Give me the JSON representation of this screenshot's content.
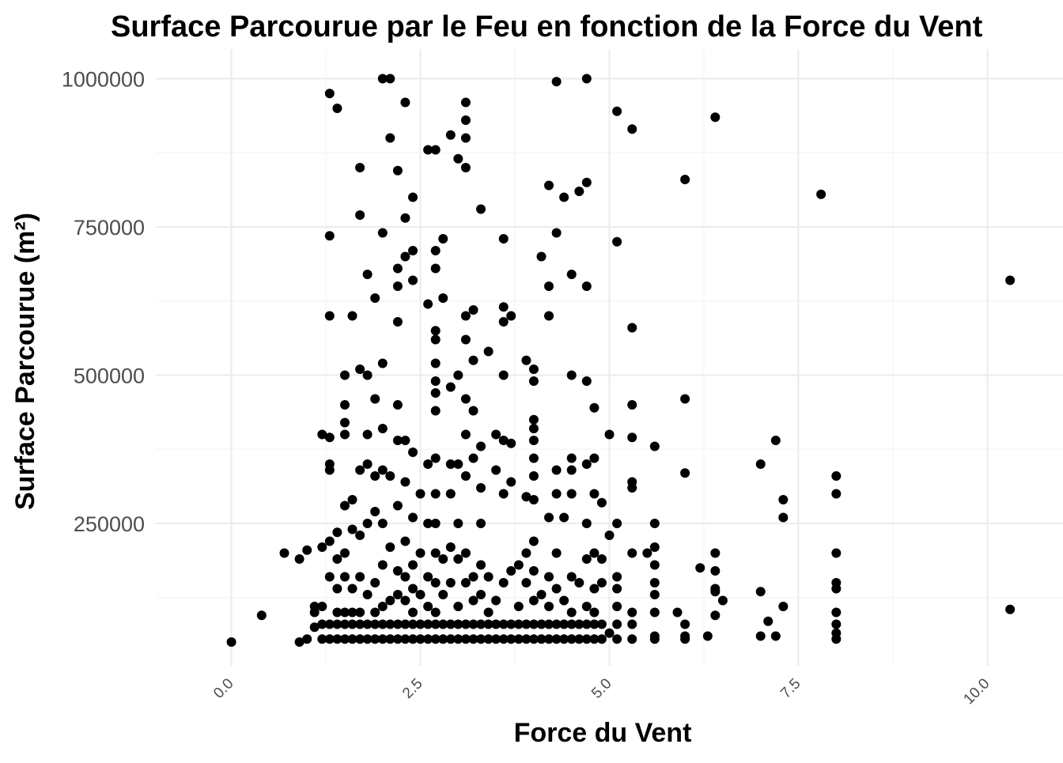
{
  "chart_data": {
    "type": "scatter",
    "title": "Surface Parcourue par le Feu en fonction de la Force du Vent",
    "xlabel": "Force du Vent",
    "ylabel": "Surface Parcourue (m²)",
    "xlim": [
      -1.0,
      11.0
    ],
    "ylim": [
      10000,
      1050000
    ],
    "x_ticks": [
      0.0,
      2.5,
      5.0,
      7.5,
      10.0
    ],
    "x_tick_labels": [
      "0.0",
      "2.5",
      "5.0",
      "7.5",
      "10.0"
    ],
    "y_ticks": [
      250000,
      500000,
      750000,
      1000000
    ],
    "y_tick_labels": [
      "250000",
      "500000",
      "750000",
      "1000000"
    ],
    "grid": true,
    "legend": "none",
    "point_color": "#000000",
    "points": [
      [
        0.0,
        50000
      ],
      [
        0.4,
        95000
      ],
      [
        0.7,
        200000
      ],
      [
        0.9,
        50000
      ],
      [
        0.9,
        190000
      ],
      [
        1.0,
        55000
      ],
      [
        1.0,
        205000
      ],
      [
        1.1,
        75000
      ],
      [
        1.1,
        100000
      ],
      [
        1.1,
        110000
      ],
      [
        1.2,
        55000
      ],
      [
        1.2,
        80000
      ],
      [
        1.2,
        110000
      ],
      [
        1.2,
        210000
      ],
      [
        1.2,
        400000
      ],
      [
        1.3,
        55000
      ],
      [
        1.3,
        80000
      ],
      [
        1.3,
        160000
      ],
      [
        1.3,
        220000
      ],
      [
        1.3,
        340000
      ],
      [
        1.3,
        350000
      ],
      [
        1.3,
        395000
      ],
      [
        1.3,
        600000
      ],
      [
        1.3,
        735000
      ],
      [
        1.3,
        975000
      ],
      [
        1.4,
        55000
      ],
      [
        1.4,
        80000
      ],
      [
        1.4,
        100000
      ],
      [
        1.4,
        140000
      ],
      [
        1.4,
        190000
      ],
      [
        1.4,
        235000
      ],
      [
        1.4,
        950000
      ],
      [
        1.5,
        55000
      ],
      [
        1.5,
        80000
      ],
      [
        1.5,
        100000
      ],
      [
        1.5,
        160000
      ],
      [
        1.5,
        200000
      ],
      [
        1.5,
        280000
      ],
      [
        1.5,
        400000
      ],
      [
        1.5,
        420000
      ],
      [
        1.5,
        450000
      ],
      [
        1.5,
        500000
      ],
      [
        1.6,
        55000
      ],
      [
        1.6,
        80000
      ],
      [
        1.6,
        100000
      ],
      [
        1.6,
        140000
      ],
      [
        1.6,
        240000
      ],
      [
        1.6,
        290000
      ],
      [
        1.6,
        600000
      ],
      [
        1.7,
        55000
      ],
      [
        1.7,
        80000
      ],
      [
        1.7,
        100000
      ],
      [
        1.7,
        160000
      ],
      [
        1.7,
        230000
      ],
      [
        1.7,
        340000
      ],
      [
        1.7,
        510000
      ],
      [
        1.7,
        770000
      ],
      [
        1.7,
        850000
      ],
      [
        1.8,
        55000
      ],
      [
        1.8,
        80000
      ],
      [
        1.8,
        130000
      ],
      [
        1.8,
        250000
      ],
      [
        1.8,
        350000
      ],
      [
        1.8,
        400000
      ],
      [
        1.8,
        500000
      ],
      [
        1.8,
        670000
      ],
      [
        1.9,
        55000
      ],
      [
        1.9,
        80000
      ],
      [
        1.9,
        100000
      ],
      [
        1.9,
        150000
      ],
      [
        1.9,
        270000
      ],
      [
        1.9,
        330000
      ],
      [
        1.9,
        460000
      ],
      [
        1.9,
        630000
      ],
      [
        2.0,
        55000
      ],
      [
        2.0,
        80000
      ],
      [
        2.0,
        110000
      ],
      [
        2.0,
        180000
      ],
      [
        2.0,
        250000
      ],
      [
        2.0,
        340000
      ],
      [
        2.0,
        410000
      ],
      [
        2.0,
        520000
      ],
      [
        2.0,
        740000
      ],
      [
        2.0,
        1000000
      ],
      [
        2.1,
        55000
      ],
      [
        2.1,
        80000
      ],
      [
        2.1,
        120000
      ],
      [
        2.1,
        210000
      ],
      [
        2.1,
        330000
      ],
      [
        2.1,
        900000
      ],
      [
        2.1,
        1000000
      ],
      [
        2.2,
        55000
      ],
      [
        2.2,
        80000
      ],
      [
        2.2,
        130000
      ],
      [
        2.2,
        170000
      ],
      [
        2.2,
        280000
      ],
      [
        2.2,
        390000
      ],
      [
        2.2,
        450000
      ],
      [
        2.2,
        590000
      ],
      [
        2.2,
        650000
      ],
      [
        2.2,
        680000
      ],
      [
        2.2,
        845000
      ],
      [
        2.3,
        55000
      ],
      [
        2.3,
        80000
      ],
      [
        2.3,
        120000
      ],
      [
        2.3,
        160000
      ],
      [
        2.3,
        220000
      ],
      [
        2.3,
        320000
      ],
      [
        2.3,
        390000
      ],
      [
        2.3,
        700000
      ],
      [
        2.3,
        765000
      ],
      [
        2.3,
        960000
      ],
      [
        2.4,
        55000
      ],
      [
        2.4,
        80000
      ],
      [
        2.4,
        100000
      ],
      [
        2.4,
        140000
      ],
      [
        2.4,
        180000
      ],
      [
        2.4,
        260000
      ],
      [
        2.4,
        370000
      ],
      [
        2.4,
        660000
      ],
      [
        2.4,
        710000
      ],
      [
        2.4,
        800000
      ],
      [
        2.5,
        55000
      ],
      [
        2.5,
        80000
      ],
      [
        2.5,
        130000
      ],
      [
        2.5,
        200000
      ],
      [
        2.5,
        300000
      ],
      [
        2.6,
        55000
      ],
      [
        2.6,
        80000
      ],
      [
        2.6,
        110000
      ],
      [
        2.6,
        160000
      ],
      [
        2.6,
        250000
      ],
      [
        2.6,
        350000
      ],
      [
        2.6,
        620000
      ],
      [
        2.6,
        880000
      ],
      [
        2.7,
        55000
      ],
      [
        2.7,
        80000
      ],
      [
        2.7,
        100000
      ],
      [
        2.7,
        150000
      ],
      [
        2.7,
        200000
      ],
      [
        2.7,
        250000
      ],
      [
        2.7,
        300000
      ],
      [
        2.7,
        360000
      ],
      [
        2.7,
        440000
      ],
      [
        2.7,
        470000
      ],
      [
        2.7,
        490000
      ],
      [
        2.7,
        520000
      ],
      [
        2.7,
        560000
      ],
      [
        2.7,
        575000
      ],
      [
        2.7,
        680000
      ],
      [
        2.7,
        710000
      ],
      [
        2.7,
        880000
      ],
      [
        2.8,
        55000
      ],
      [
        2.8,
        80000
      ],
      [
        2.8,
        130000
      ],
      [
        2.8,
        190000
      ],
      [
        2.8,
        630000
      ],
      [
        2.8,
        730000
      ],
      [
        2.9,
        55000
      ],
      [
        2.9,
        80000
      ],
      [
        2.9,
        150000
      ],
      [
        2.9,
        210000
      ],
      [
        2.9,
        300000
      ],
      [
        2.9,
        350000
      ],
      [
        2.9,
        480000
      ],
      [
        2.9,
        905000
      ],
      [
        3.0,
        55000
      ],
      [
        3.0,
        80000
      ],
      [
        3.0,
        110000
      ],
      [
        3.0,
        190000
      ],
      [
        3.0,
        250000
      ],
      [
        3.0,
        350000
      ],
      [
        3.0,
        500000
      ],
      [
        3.0,
        865000
      ],
      [
        3.1,
        55000
      ],
      [
        3.1,
        80000
      ],
      [
        3.1,
        150000
      ],
      [
        3.1,
        200000
      ],
      [
        3.1,
        330000
      ],
      [
        3.1,
        400000
      ],
      [
        3.1,
        460000
      ],
      [
        3.1,
        560000
      ],
      [
        3.1,
        600000
      ],
      [
        3.1,
        850000
      ],
      [
        3.1,
        900000
      ],
      [
        3.1,
        930000
      ],
      [
        3.1,
        960000
      ],
      [
        3.2,
        55000
      ],
      [
        3.2,
        80000
      ],
      [
        3.2,
        120000
      ],
      [
        3.2,
        160000
      ],
      [
        3.2,
        360000
      ],
      [
        3.2,
        440000
      ],
      [
        3.2,
        525000
      ],
      [
        3.2,
        610000
      ],
      [
        3.3,
        55000
      ],
      [
        3.3,
        80000
      ],
      [
        3.3,
        130000
      ],
      [
        3.3,
        180000
      ],
      [
        3.3,
        250000
      ],
      [
        3.3,
        310000
      ],
      [
        3.3,
        380000
      ],
      [
        3.3,
        780000
      ],
      [
        3.4,
        55000
      ],
      [
        3.4,
        80000
      ],
      [
        3.4,
        100000
      ],
      [
        3.4,
        160000
      ],
      [
        3.4,
        540000
      ],
      [
        3.5,
        55000
      ],
      [
        3.5,
        80000
      ],
      [
        3.5,
        120000
      ],
      [
        3.5,
        340000
      ],
      [
        3.5,
        400000
      ],
      [
        3.6,
        55000
      ],
      [
        3.6,
        80000
      ],
      [
        3.6,
        150000
      ],
      [
        3.6,
        300000
      ],
      [
        3.6,
        390000
      ],
      [
        3.6,
        500000
      ],
      [
        3.6,
        590000
      ],
      [
        3.6,
        615000
      ],
      [
        3.6,
        730000
      ],
      [
        3.7,
        55000
      ],
      [
        3.7,
        80000
      ],
      [
        3.7,
        170000
      ],
      [
        3.7,
        320000
      ],
      [
        3.7,
        385000
      ],
      [
        3.7,
        600000
      ],
      [
        3.8,
        55000
      ],
      [
        3.8,
        80000
      ],
      [
        3.8,
        110000
      ],
      [
        3.8,
        180000
      ],
      [
        3.9,
        55000
      ],
      [
        3.9,
        80000
      ],
      [
        3.9,
        150000
      ],
      [
        3.9,
        200000
      ],
      [
        3.9,
        295000
      ],
      [
        3.9,
        525000
      ],
      [
        4.0,
        55000
      ],
      [
        4.0,
        80000
      ],
      [
        4.0,
        120000
      ],
      [
        4.0,
        170000
      ],
      [
        4.0,
        220000
      ],
      [
        4.0,
        290000
      ],
      [
        4.0,
        330000
      ],
      [
        4.0,
        360000
      ],
      [
        4.0,
        390000
      ],
      [
        4.0,
        410000
      ],
      [
        4.0,
        425000
      ],
      [
        4.0,
        490000
      ],
      [
        4.0,
        510000
      ],
      [
        4.1,
        55000
      ],
      [
        4.1,
        80000
      ],
      [
        4.1,
        130000
      ],
      [
        4.1,
        700000
      ],
      [
        4.2,
        55000
      ],
      [
        4.2,
        80000
      ],
      [
        4.2,
        110000
      ],
      [
        4.2,
        160000
      ],
      [
        4.2,
        260000
      ],
      [
        4.2,
        600000
      ],
      [
        4.2,
        650000
      ],
      [
        4.2,
        820000
      ],
      [
        4.3,
        55000
      ],
      [
        4.3,
        80000
      ],
      [
        4.3,
        140000
      ],
      [
        4.3,
        200000
      ],
      [
        4.3,
        300000
      ],
      [
        4.3,
        340000
      ],
      [
        4.3,
        740000
      ],
      [
        4.3,
        995000
      ],
      [
        4.4,
        55000
      ],
      [
        4.4,
        80000
      ],
      [
        4.4,
        120000
      ],
      [
        4.4,
        260000
      ],
      [
        4.4,
        800000
      ],
      [
        4.5,
        55000
      ],
      [
        4.5,
        80000
      ],
      [
        4.5,
        100000
      ],
      [
        4.5,
        160000
      ],
      [
        4.5,
        300000
      ],
      [
        4.5,
        340000
      ],
      [
        4.5,
        360000
      ],
      [
        4.5,
        500000
      ],
      [
        4.5,
        670000
      ],
      [
        4.6,
        55000
      ],
      [
        4.6,
        80000
      ],
      [
        4.6,
        150000
      ],
      [
        4.6,
        810000
      ],
      [
        4.7,
        55000
      ],
      [
        4.7,
        80000
      ],
      [
        4.7,
        110000
      ],
      [
        4.7,
        190000
      ],
      [
        4.7,
        250000
      ],
      [
        4.7,
        350000
      ],
      [
        4.7,
        490000
      ],
      [
        4.7,
        650000
      ],
      [
        4.7,
        825000
      ],
      [
        4.7,
        1000000
      ],
      [
        4.8,
        55000
      ],
      [
        4.8,
        80000
      ],
      [
        4.8,
        100000
      ],
      [
        4.8,
        140000
      ],
      [
        4.8,
        200000
      ],
      [
        4.8,
        300000
      ],
      [
        4.8,
        360000
      ],
      [
        4.8,
        445000
      ],
      [
        4.9,
        55000
      ],
      [
        4.9,
        80000
      ],
      [
        4.9,
        150000
      ],
      [
        4.9,
        190000
      ],
      [
        4.9,
        285000
      ],
      [
        5.0,
        65000
      ],
      [
        5.0,
        230000
      ],
      [
        5.0,
        400000
      ],
      [
        5.1,
        55000
      ],
      [
        5.1,
        80000
      ],
      [
        5.1,
        110000
      ],
      [
        5.1,
        140000
      ],
      [
        5.1,
        160000
      ],
      [
        5.1,
        250000
      ],
      [
        5.1,
        725000
      ],
      [
        5.1,
        945000
      ],
      [
        5.3,
        55000
      ],
      [
        5.3,
        80000
      ],
      [
        5.3,
        100000
      ],
      [
        5.3,
        200000
      ],
      [
        5.3,
        310000
      ],
      [
        5.3,
        320000
      ],
      [
        5.3,
        395000
      ],
      [
        5.3,
        450000
      ],
      [
        5.3,
        580000
      ],
      [
        5.3,
        915000
      ],
      [
        5.5,
        200000
      ],
      [
        5.6,
        55000
      ],
      [
        5.6,
        60000
      ],
      [
        5.6,
        100000
      ],
      [
        5.6,
        130000
      ],
      [
        5.6,
        150000
      ],
      [
        5.6,
        180000
      ],
      [
        5.6,
        210000
      ],
      [
        5.6,
        250000
      ],
      [
        5.6,
        380000
      ],
      [
        5.9,
        100000
      ],
      [
        6.0,
        55000
      ],
      [
        6.0,
        60000
      ],
      [
        6.0,
        80000
      ],
      [
        6.0,
        335000
      ],
      [
        6.0,
        460000
      ],
      [
        6.0,
        830000
      ],
      [
        6.2,
        175000
      ],
      [
        6.3,
        60000
      ],
      [
        6.4,
        95000
      ],
      [
        6.4,
        135000
      ],
      [
        6.4,
        140000
      ],
      [
        6.4,
        170000
      ],
      [
        6.4,
        200000
      ],
      [
        6.4,
        935000
      ],
      [
        6.5,
        120000
      ],
      [
        7.0,
        60000
      ],
      [
        7.0,
        135000
      ],
      [
        7.0,
        350000
      ],
      [
        7.1,
        85000
      ],
      [
        7.2,
        60000
      ],
      [
        7.2,
        390000
      ],
      [
        7.3,
        110000
      ],
      [
        7.3,
        260000
      ],
      [
        7.3,
        290000
      ],
      [
        7.8,
        805000
      ],
      [
        8.0,
        55000
      ],
      [
        8.0,
        65000
      ],
      [
        8.0,
        80000
      ],
      [
        8.0,
        100000
      ],
      [
        8.0,
        140000
      ],
      [
        8.0,
        150000
      ],
      [
        8.0,
        200000
      ],
      [
        8.0,
        300000
      ],
      [
        8.0,
        330000
      ],
      [
        10.3,
        105000
      ],
      [
        10.3,
        660000
      ]
    ]
  }
}
